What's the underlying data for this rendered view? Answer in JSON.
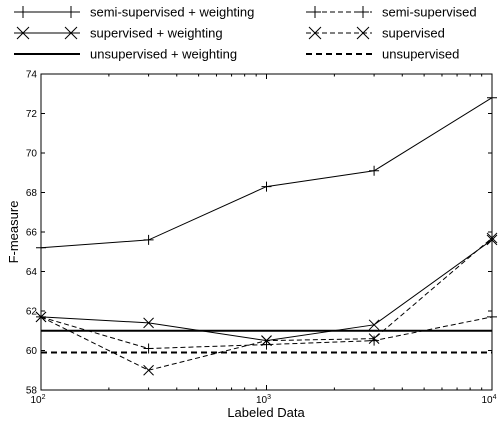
{
  "chart_data": {
    "type": "line",
    "xlabel": "Labeled Data",
    "ylabel": "F-measure",
    "xscale": "log",
    "xlim": [
      100,
      10000
    ],
    "ylim": [
      58,
      74
    ],
    "grid": false,
    "legend_position": "top",
    "x_ticks": [
      {
        "value": 100,
        "base": "10",
        "exp": "2"
      },
      {
        "value": 1000,
        "base": "10",
        "exp": "3"
      },
      {
        "value": 10000,
        "base": "10",
        "exp": "4"
      }
    ],
    "y_ticks": [
      58,
      60,
      62,
      64,
      66,
      68,
      70,
      72,
      74
    ],
    "series": [
      {
        "name": "semi-supervised + weighting",
        "dash": "solid",
        "marker": "plus",
        "x": [
          100,
          300,
          1000,
          3000,
          10000
        ],
        "y": [
          65.2,
          65.6,
          68.3,
          69.1,
          72.8
        ]
      },
      {
        "name": "semi-supervised",
        "dash": "dashed",
        "marker": "plus",
        "x": [
          100,
          300,
          1000,
          3000,
          10000
        ],
        "y": [
          61.7,
          60.1,
          60.3,
          60.5,
          61.7
        ]
      },
      {
        "name": "supervised + weighting",
        "dash": "solid",
        "marker": "x",
        "x": [
          100,
          300,
          1000,
          3000,
          10000
        ],
        "y": [
          61.7,
          61.4,
          60.5,
          61.3,
          65.6
        ]
      },
      {
        "name": "supervised",
        "dash": "dashed",
        "marker": "x",
        "x": [
          100,
          300,
          1000,
          3000,
          10000
        ],
        "y": [
          61.7,
          59.0,
          60.5,
          60.6,
          65.7
        ]
      },
      {
        "name": "unsupervised + weighting",
        "dash": "solid",
        "marker": "none",
        "x": [
          100,
          10000
        ],
        "y": [
          61.0,
          61.0
        ]
      },
      {
        "name": "unsupervised",
        "dash": "dashed",
        "marker": "none",
        "x": [
          100,
          10000
        ],
        "y": [
          59.9,
          59.9
        ]
      }
    ]
  }
}
